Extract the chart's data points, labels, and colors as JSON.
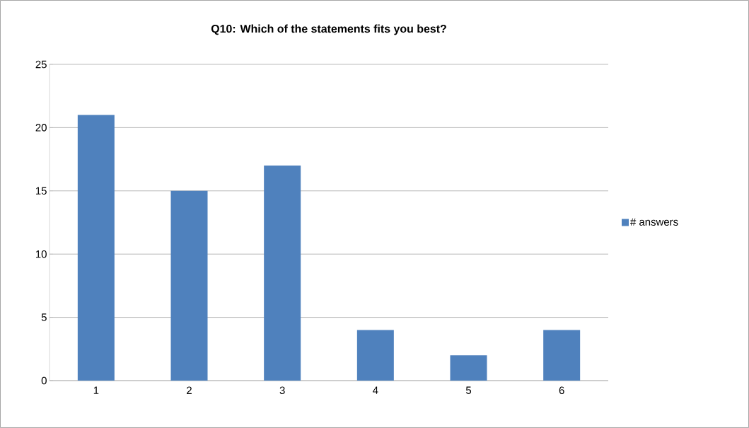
{
  "chart_data": {
    "type": "bar",
    "title": "Q10: Which of the statements fits you best?",
    "categories": [
      "1",
      "2",
      "3",
      "4",
      "5",
      "6"
    ],
    "series": [
      {
        "name": "# answers",
        "color": "#4f81bd",
        "values": [
          21,
          15,
          17,
          4,
          2,
          4
        ]
      }
    ],
    "ylim": [
      0,
      25
    ],
    "yticks": [
      0,
      5,
      10,
      15,
      20,
      25
    ],
    "grid": "y",
    "legend": "right"
  }
}
